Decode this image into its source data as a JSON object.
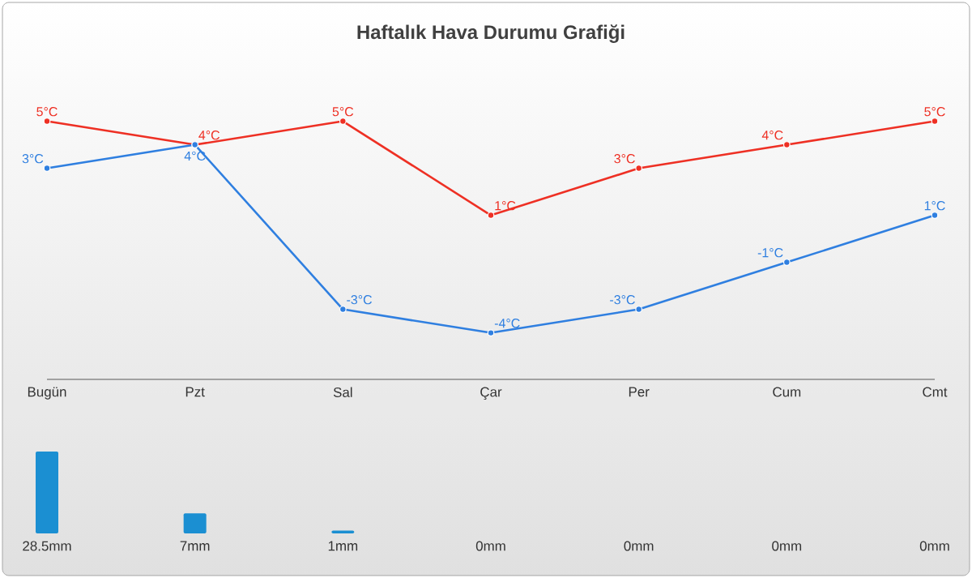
{
  "chart_data": [
    {
      "type": "line",
      "title": "Haftalık Hava Durumu Grafiği",
      "categories": [
        "Bugün",
        "Pzt",
        "Sal",
        "Çar",
        "Per",
        "Cum",
        "Cmt"
      ],
      "series": [
        {
          "color": "#ee3024",
          "values": [
            5,
            4,
            5,
            1,
            3,
            4,
            5
          ],
          "value_labels": [
            "5°C",
            "4°C",
            "5°C",
            "1°C",
            "3°C",
            "4°C",
            "5°C"
          ]
        },
        {
          "color": "#2f7fe0",
          "values": [
            3,
            4,
            -3,
            -4,
            -3,
            -1,
            1
          ],
          "value_labels": [
            "3°C",
            "4°C",
            "-3°C",
            "-4°C",
            "-3°C",
            "-1°C",
            "1°C"
          ]
        }
      ],
      "marker": "circle",
      "tick_labels": "x"
    },
    {
      "type": "bar",
      "categories": [
        null,
        null,
        null,
        null,
        null,
        null,
        null
      ],
      "values": [
        28.5,
        7,
        1,
        0,
        0,
        0,
        0
      ],
      "color": "#1b8fd2",
      "value_labels": [
        "28.5mm",
        "7mm",
        "1mm",
        "0mm",
        "0mm",
        "0mm",
        "0mm"
      ],
      "tick_labels": false
    }
  ]
}
